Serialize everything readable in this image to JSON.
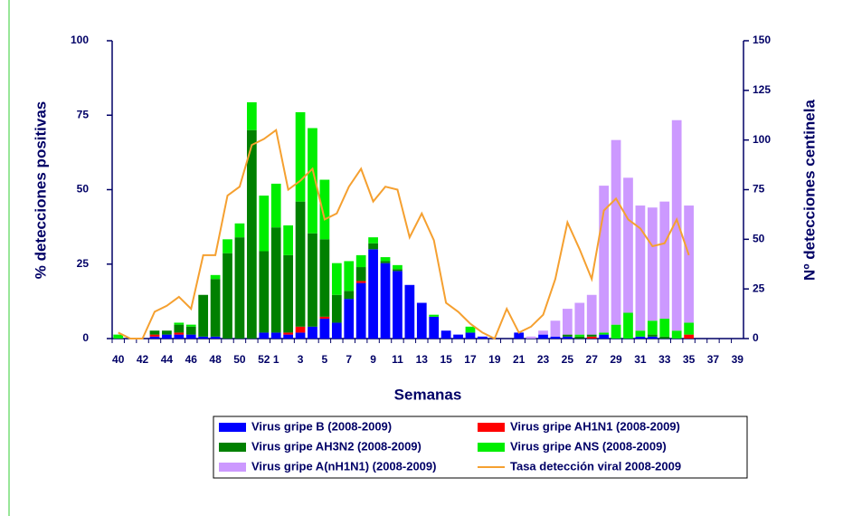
{
  "chart_data": {
    "type": "bar-line",
    "x_label": "Semanas",
    "y_label": "% detecciones positivas",
    "y2_label": "Nº detecciones centinela",
    "categories": [
      "40",
      null,
      "42",
      null,
      "44",
      null,
      "46",
      null,
      "48",
      null,
      "50",
      null,
      "52",
      "1",
      null,
      "3",
      null,
      "5",
      null,
      "7",
      null,
      "9",
      null,
      "11",
      null,
      "13",
      null,
      "15",
      null,
      "17",
      null,
      "19",
      null,
      "21",
      null,
      "23",
      null,
      "25",
      null,
      "27",
      null,
      "29",
      null,
      "31",
      null,
      "33",
      null,
      "35",
      null,
      "37",
      null,
      "39"
    ],
    "ylim": [
      0,
      100
    ],
    "yticks": [
      0,
      25,
      50,
      75,
      100
    ],
    "y2lim": [
      0,
      150
    ],
    "y2ticks": [
      0,
      25,
      50,
      75,
      100,
      125,
      150
    ],
    "series": [
      {
        "name": "Virus gripe B (2008-2009)",
        "color": "#0000ff",
        "axis": "y2",
        "values": [
          0,
          0,
          0,
          1,
          2,
          2,
          2,
          1,
          1,
          0,
          0,
          0,
          3,
          3,
          2,
          3,
          6,
          10,
          8,
          20,
          28,
          45,
          38,
          34,
          27,
          18,
          11,
          4,
          2,
          3,
          1,
          0,
          0,
          3,
          0,
          2,
          1,
          1,
          0,
          0,
          2,
          0,
          0,
          1,
          1,
          0,
          0,
          0,
          0,
          0,
          0,
          0
        ]
      },
      {
        "name": "Virus gripe AH1N1 (2008-2009)",
        "color": "#ff0000",
        "axis": "y2",
        "values": [
          0,
          0,
          0,
          1,
          0,
          1,
          0,
          0,
          0,
          0,
          0,
          0,
          0,
          0,
          1,
          3,
          0,
          1,
          0,
          0,
          1,
          0,
          0,
          0,
          0,
          0,
          0,
          0,
          0,
          0,
          0,
          0,
          0,
          0,
          0,
          0,
          0,
          0,
          0,
          1,
          0,
          0,
          0,
          0,
          0,
          0,
          0,
          2,
          0,
          0,
          0,
          0
        ]
      },
      {
        "name": "Virus gripe AH3N2 (2008-2009)",
        "color": "#008000",
        "axis": "y2",
        "values": [
          0,
          0,
          0,
          2,
          2,
          4,
          4,
          21,
          29,
          43,
          51,
          105,
          41,
          53,
          39,
          63,
          47,
          39,
          14,
          4,
          7,
          3,
          1,
          1,
          0,
          0,
          0,
          0,
          0,
          0,
          0,
          0,
          0,
          0,
          0,
          0,
          0,
          1,
          1,
          1,
          0,
          0,
          0,
          0,
          1,
          1,
          0,
          0,
          0,
          0,
          0,
          0
        ]
      },
      {
        "name": "Virus gripe ANS (2008-2009)",
        "color": "#00ee00",
        "axis": "y2",
        "values": [
          2,
          0,
          0,
          0,
          0,
          1,
          1,
          0,
          2,
          7,
          7,
          14,
          28,
          22,
          15,
          45,
          53,
          30,
          16,
          15,
          6,
          3,
          2,
          2,
          0,
          0,
          1,
          0,
          0,
          3,
          0,
          0,
          0,
          0,
          0,
          0,
          0,
          0,
          1,
          0,
          1,
          7,
          13,
          3,
          7,
          9,
          4,
          6,
          0,
          0,
          0,
          0
        ]
      },
      {
        "name": "Virus gripe A(nH1N1)  (2008-2009)",
        "color": "#cc99ff",
        "axis": "y2",
        "values": [
          0,
          0,
          0,
          0,
          0,
          0,
          0,
          0,
          0,
          0,
          0,
          0,
          0,
          0,
          0,
          0,
          0,
          0,
          0,
          0,
          0,
          0,
          0,
          0,
          0,
          0,
          0,
          0,
          0,
          0,
          0,
          0,
          0,
          0,
          1,
          2,
          8,
          13,
          16,
          20,
          74,
          93,
          68,
          63,
          57,
          59,
          106,
          59,
          0,
          0,
          0,
          0
        ]
      },
      {
        "name": "Tasa detección viral 2008-2009",
        "color": "#f5a030",
        "type": "line",
        "values": [
          2,
          0,
          0,
          9,
          11,
          14,
          10,
          28,
          28,
          48,
          51,
          65,
          67,
          70,
          50,
          53,
          57,
          40,
          42,
          51,
          57,
          46,
          51,
          50,
          34,
          42,
          33,
          12,
          9,
          5,
          2,
          0,
          10,
          2,
          4,
          8,
          20,
          39,
          30,
          20,
          43,
          47,
          40,
          37,
          31,
          32,
          40,
          28,
          null,
          null,
          null,
          null
        ]
      }
    ]
  }
}
